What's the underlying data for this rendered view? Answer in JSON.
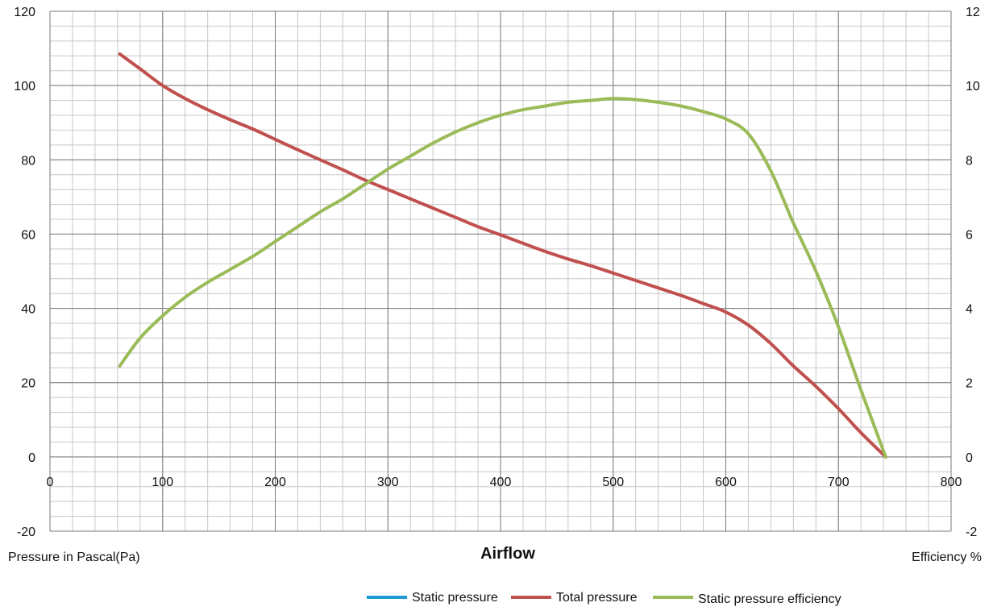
{
  "chart_data": {
    "type": "line",
    "title": "",
    "xlabel": "Airflow",
    "ylabel": "Pressure in Pascal(Pa)",
    "y2label": "Efficiency %",
    "xlim": [
      0,
      800
    ],
    "ylim": [
      -20,
      120
    ],
    "y2lim": [
      -2,
      12
    ],
    "x_ticks": [
      0,
      100,
      200,
      300,
      400,
      500,
      600,
      700,
      800
    ],
    "y_ticks": [
      -20,
      0,
      20,
      40,
      60,
      80,
      100,
      120
    ],
    "y2_ticks": [
      -2,
      0,
      2,
      4,
      6,
      8,
      10,
      12
    ],
    "grid": true,
    "legend_position": "bottom-right",
    "series": [
      {
        "name": "Static pressure",
        "color": "#1f9bd7",
        "axis": "left",
        "points": []
      },
      {
        "name": "Total pressure",
        "color": "#c0504d",
        "axis": "left",
        "points": [
          [
            62,
            108.5
          ],
          [
            80,
            104.5
          ],
          [
            100,
            100
          ],
          [
            120,
            96.5
          ],
          [
            140,
            93.5
          ],
          [
            160,
            90.8
          ],
          [
            180,
            88.3
          ],
          [
            200,
            85.5
          ],
          [
            220,
            82.7
          ],
          [
            240,
            80
          ],
          [
            260,
            77.3
          ],
          [
            280,
            74.5
          ],
          [
            300,
            72
          ],
          [
            320,
            69.5
          ],
          [
            340,
            67
          ],
          [
            360,
            64.5
          ],
          [
            380,
            62
          ],
          [
            400,
            59.8
          ],
          [
            420,
            57.5
          ],
          [
            440,
            55.3
          ],
          [
            460,
            53.3
          ],
          [
            480,
            51.5
          ],
          [
            500,
            49.5
          ],
          [
            520,
            47.5
          ],
          [
            540,
            45.5
          ],
          [
            560,
            43.5
          ],
          [
            580,
            41.3
          ],
          [
            600,
            39
          ],
          [
            620,
            35.5
          ],
          [
            640,
            30.5
          ],
          [
            660,
            24.5
          ],
          [
            680,
            19
          ],
          [
            700,
            13
          ],
          [
            720,
            6.5
          ],
          [
            742,
            0
          ]
        ]
      },
      {
        "name": "Static pressure efficiency",
        "color": "#9bbb59",
        "axis": "right",
        "points": [
          [
            62,
            2.45
          ],
          [
            80,
            3.2
          ],
          [
            100,
            3.8
          ],
          [
            120,
            4.3
          ],
          [
            140,
            4.7
          ],
          [
            160,
            5.05
          ],
          [
            180,
            5.4
          ],
          [
            200,
            5.8
          ],
          [
            220,
            6.2
          ],
          [
            240,
            6.6
          ],
          [
            260,
            6.95
          ],
          [
            280,
            7.35
          ],
          [
            300,
            7.75
          ],
          [
            320,
            8.1
          ],
          [
            340,
            8.45
          ],
          [
            360,
            8.75
          ],
          [
            380,
            9.0
          ],
          [
            400,
            9.2
          ],
          [
            420,
            9.35
          ],
          [
            440,
            9.45
          ],
          [
            460,
            9.55
          ],
          [
            480,
            9.6
          ],
          [
            500,
            9.65
          ],
          [
            520,
            9.62
          ],
          [
            540,
            9.55
          ],
          [
            560,
            9.45
          ],
          [
            580,
            9.3
          ],
          [
            600,
            9.1
          ],
          [
            620,
            8.7
          ],
          [
            640,
            7.7
          ],
          [
            660,
            6.3
          ],
          [
            680,
            5.0
          ],
          [
            700,
            3.5
          ],
          [
            720,
            1.8
          ],
          [
            742,
            0
          ]
        ]
      }
    ]
  }
}
